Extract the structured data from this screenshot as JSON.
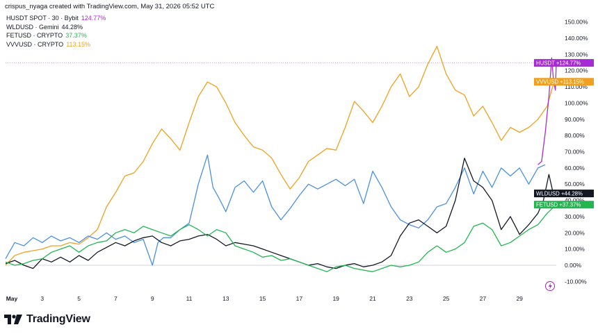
{
  "header": {
    "credit": "crispus_nyaga created with TradingView.com, May 31, 2026 05:52 UTC"
  },
  "legend": [
    {
      "label": "HUSDT SPOT · 30 · Bybit",
      "value": "124.77%",
      "color": "#a72bd4"
    },
    {
      "label": "WLDUSD · Gemini",
      "value": "44.28%",
      "color": "#131722"
    },
    {
      "label": "FETUSD · CRYPTO",
      "value": "37.37%",
      "color": "#22b550"
    },
    {
      "label": "VVVUSD · CRYPTO",
      "value": "113.15%",
      "color": "#f0a020"
    }
  ],
  "footer": {
    "brand": "TradingView",
    "logo_icon": "tradingview-logo-icon",
    "flash_icon": "lightning-bolt-icon"
  },
  "chart_data": {
    "type": "line",
    "x_axis_labels": [
      "May",
      "3",
      "5",
      "7",
      "9",
      "11",
      "13",
      "15",
      "17",
      "19",
      "21",
      "23",
      "25",
      "27",
      "29"
    ],
    "x_range_days": [
      1,
      31
    ],
    "y_axis_labels": [
      "150.00%",
      "140.00%",
      "130.00%",
      "120.00%",
      "110.00%",
      "100.00%",
      "90.00%",
      "80.00%",
      "70.00%",
      "60.00%",
      "50.00%",
      "40.00%",
      "30.00%",
      "20.00%",
      "10.00%",
      "0.00%",
      "-10.00%"
    ],
    "ylim": [
      -12,
      155
    ],
    "series": [
      {
        "name": "VVVUSD",
        "color": "#f0a020",
        "tag": "VVVUSD",
        "tag_value": "+113.15%",
        "last": 113.15,
        "points": [
          [
            1,
            0
          ],
          [
            1.5,
            6
          ],
          [
            2,
            8
          ],
          [
            2.5,
            9
          ],
          [
            3,
            10
          ],
          [
            3.5,
            12
          ],
          [
            4,
            12
          ],
          [
            4.5,
            14
          ],
          [
            5,
            13
          ],
          [
            5.5,
            17
          ],
          [
            6,
            22
          ],
          [
            6.5,
            36
          ],
          [
            7,
            45
          ],
          [
            7.5,
            55
          ],
          [
            8,
            57
          ],
          [
            8.5,
            64
          ],
          [
            9,
            75
          ],
          [
            9.5,
            84
          ],
          [
            10,
            78
          ],
          [
            10.5,
            71
          ],
          [
            11,
            88
          ],
          [
            11.5,
            104
          ],
          [
            12,
            113
          ],
          [
            12.5,
            110
          ],
          [
            13,
            100
          ],
          [
            13.5,
            88
          ],
          [
            14,
            80
          ],
          [
            14.5,
            73
          ],
          [
            15,
            71
          ],
          [
            15.5,
            66
          ],
          [
            16,
            56
          ],
          [
            16.5,
            47
          ],
          [
            17,
            54
          ],
          [
            17.5,
            64
          ],
          [
            18,
            68
          ],
          [
            18.5,
            72
          ],
          [
            19,
            71
          ],
          [
            19.5,
            85
          ],
          [
            20,
            101
          ],
          [
            20.5,
            95
          ],
          [
            21,
            88
          ],
          [
            21.5,
            98
          ],
          [
            22,
            110
          ],
          [
            22.5,
            118
          ],
          [
            23,
            104
          ],
          [
            23.5,
            110
          ],
          [
            24,
            124
          ],
          [
            24.5,
            135
          ],
          [
            25,
            118
          ],
          [
            25.5,
            108
          ],
          [
            26,
            105
          ],
          [
            26.5,
            92
          ],
          [
            27,
            98
          ],
          [
            27.5,
            88
          ],
          [
            28,
            77
          ],
          [
            28.5,
            85
          ],
          [
            29,
            82
          ],
          [
            29.5,
            85
          ],
          [
            30,
            90
          ],
          [
            30.5,
            98
          ],
          [
            30.8,
            110
          ],
          [
            31,
            113.15
          ]
        ]
      },
      {
        "name": "HUSDT",
        "color": "#a72bd4",
        "tag": "HUSDT",
        "tag_value": "+124.77%",
        "last": 124.77,
        "points": [
          [
            30,
            62
          ],
          [
            30.2,
            64
          ],
          [
            30.4,
            82
          ],
          [
            30.6,
            104
          ],
          [
            30.75,
            128
          ],
          [
            30.85,
            114
          ],
          [
            30.95,
            108
          ],
          [
            31,
            124.77
          ]
        ]
      },
      {
        "name": "BLUE",
        "color": "#4a8fe0",
        "tag": "",
        "tag_value": "",
        "last": 58,
        "points": [
          [
            1,
            4
          ],
          [
            1.5,
            14
          ],
          [
            2,
            12
          ],
          [
            2.5,
            17
          ],
          [
            3,
            14
          ],
          [
            3.5,
            18
          ],
          [
            4,
            15
          ],
          [
            4.5,
            17
          ],
          [
            5,
            14
          ],
          [
            5.5,
            18
          ],
          [
            6,
            16
          ],
          [
            6.5,
            20
          ],
          [
            7,
            16
          ],
          [
            7.5,
            18
          ],
          [
            8,
            14
          ],
          [
            8.5,
            16
          ],
          [
            9,
            0
          ],
          [
            9.3,
            14
          ],
          [
            9.6,
            17
          ],
          [
            10,
            17
          ],
          [
            10.5,
            22
          ],
          [
            11,
            26
          ],
          [
            11.5,
            50
          ],
          [
            12,
            68
          ],
          [
            12.3,
            48
          ],
          [
            12.6,
            42
          ],
          [
            13,
            33
          ],
          [
            13.5,
            48
          ],
          [
            14,
            52
          ],
          [
            14.5,
            45
          ],
          [
            15,
            52
          ],
          [
            15.5,
            36
          ],
          [
            16,
            28
          ],
          [
            16.5,
            35
          ],
          [
            17,
            43
          ],
          [
            17.5,
            50
          ],
          [
            18,
            47
          ],
          [
            18.5,
            50
          ],
          [
            19,
            53
          ],
          [
            19.5,
            49
          ],
          [
            20,
            53
          ],
          [
            20.5,
            38
          ],
          [
            21,
            58
          ],
          [
            21.5,
            48
          ],
          [
            22,
            36
          ],
          [
            22.5,
            28
          ],
          [
            23,
            25
          ],
          [
            23.5,
            23
          ],
          [
            24,
            28
          ],
          [
            24.5,
            36
          ],
          [
            25,
            38
          ],
          [
            25.5,
            48
          ],
          [
            26,
            60
          ],
          [
            26.5,
            44
          ],
          [
            27,
            58
          ],
          [
            27.5,
            48
          ],
          [
            28,
            60
          ],
          [
            28.5,
            55
          ],
          [
            29,
            60
          ],
          [
            29.5,
            50
          ],
          [
            30,
            60
          ],
          [
            30.4,
            62
          ]
        ]
      },
      {
        "name": "WLDUSD",
        "color": "#131722",
        "tag": "WLDUSD",
        "tag_value": "+44.28%",
        "last": 44.28,
        "points": [
          [
            1,
            1
          ],
          [
            1.5,
            3
          ],
          [
            2,
            0
          ],
          [
            2.5,
            -2
          ],
          [
            3,
            4
          ],
          [
            3.5,
            2
          ],
          [
            4,
            5
          ],
          [
            4.5,
            2
          ],
          [
            5,
            6
          ],
          [
            5.5,
            3
          ],
          [
            6,
            8
          ],
          [
            6.5,
            11
          ],
          [
            7,
            14
          ],
          [
            7.5,
            12
          ],
          [
            8,
            15
          ],
          [
            8.5,
            17
          ],
          [
            9,
            18
          ],
          [
            9.5,
            14
          ],
          [
            10,
            12
          ],
          [
            10.5,
            15
          ],
          [
            11,
            16
          ],
          [
            11.5,
            18
          ],
          [
            12,
            19
          ],
          [
            12.5,
            16
          ],
          [
            13,
            12
          ],
          [
            13.5,
            14
          ],
          [
            14,
            13
          ],
          [
            14.5,
            12
          ],
          [
            15,
            10
          ],
          [
            15.5,
            8
          ],
          [
            16,
            6
          ],
          [
            16.5,
            4
          ],
          [
            17,
            2
          ],
          [
            17.5,
            0
          ],
          [
            18,
            1
          ],
          [
            18.5,
            -1
          ],
          [
            19,
            -2
          ],
          [
            19.5,
            0
          ],
          [
            20,
            1
          ],
          [
            20.5,
            -1
          ],
          [
            21,
            0
          ],
          [
            21.5,
            2
          ],
          [
            22,
            6
          ],
          [
            22.5,
            18
          ],
          [
            23,
            26
          ],
          [
            23.5,
            28
          ],
          [
            24,
            24
          ],
          [
            24.5,
            20
          ],
          [
            25,
            24
          ],
          [
            25.5,
            40
          ],
          [
            26,
            66
          ],
          [
            26.5,
            52
          ],
          [
            27,
            48
          ],
          [
            27.5,
            40
          ],
          [
            28,
            22
          ],
          [
            28.5,
            30
          ],
          [
            29,
            19
          ],
          [
            29.5,
            25
          ],
          [
            30,
            32
          ],
          [
            30.3,
            40
          ],
          [
            30.6,
            56
          ],
          [
            30.8,
            46
          ],
          [
            31,
            44.28
          ]
        ]
      },
      {
        "name": "FETUSD",
        "color": "#22b550",
        "tag": "FETUSD",
        "tag_value": "+37.37%",
        "last": 37.37,
        "points": [
          [
            1,
            2
          ],
          [
            1.5,
            0
          ],
          [
            2,
            1
          ],
          [
            2.5,
            3
          ],
          [
            3,
            4
          ],
          [
            3.5,
            8
          ],
          [
            4,
            10
          ],
          [
            4.5,
            12
          ],
          [
            5,
            8
          ],
          [
            5.5,
            12
          ],
          [
            6,
            14
          ],
          [
            6.5,
            15
          ],
          [
            7,
            20
          ],
          [
            7.5,
            22
          ],
          [
            8,
            20
          ],
          [
            8.5,
            24
          ],
          [
            9,
            22
          ],
          [
            9.5,
            20
          ],
          [
            10,
            18
          ],
          [
            10.5,
            22
          ],
          [
            11,
            25
          ],
          [
            11.5,
            22
          ],
          [
            12,
            18
          ],
          [
            12.5,
            22
          ],
          [
            13,
            20
          ],
          [
            13.5,
            12
          ],
          [
            14,
            10
          ],
          [
            14.5,
            8
          ],
          [
            15,
            5
          ],
          [
            15.5,
            6
          ],
          [
            16,
            3
          ],
          [
            16.5,
            4
          ],
          [
            17,
            2
          ],
          [
            17.5,
            0
          ],
          [
            18,
            -2
          ],
          [
            18.5,
            -4
          ],
          [
            19,
            -1
          ],
          [
            19.5,
            0
          ],
          [
            20,
            -2
          ],
          [
            20.5,
            -3
          ],
          [
            21,
            -4
          ],
          [
            21.5,
            -2
          ],
          [
            22,
            0
          ],
          [
            22.5,
            -1
          ],
          [
            23,
            0
          ],
          [
            23.5,
            2
          ],
          [
            24,
            8
          ],
          [
            24.5,
            12
          ],
          [
            25,
            8
          ],
          [
            25.5,
            10
          ],
          [
            26,
            14
          ],
          [
            26.5,
            24
          ],
          [
            27,
            26
          ],
          [
            27.5,
            22
          ],
          [
            28,
            12
          ],
          [
            28.5,
            14
          ],
          [
            29,
            18
          ],
          [
            29.5,
            22
          ],
          [
            30,
            25
          ],
          [
            30.5,
            32
          ],
          [
            31,
            37.37
          ]
        ]
      }
    ]
  }
}
